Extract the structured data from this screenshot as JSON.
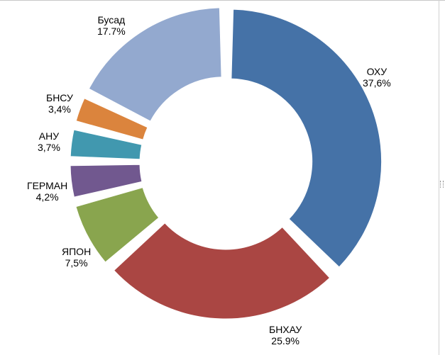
{
  "chart_data": {
    "type": "pie",
    "style": "doughnut-exploded",
    "grid": false,
    "legend": "none",
    "title": "",
    "slices": [
      {
        "category": "ОХУ",
        "label": "37,6%",
        "value": 37.6,
        "color": "#4572a7"
      },
      {
        "category": "БНХАУ",
        "label": "25.9%",
        "value": 25.9,
        "color": "#aa4643"
      },
      {
        "category": "ЯПОН",
        "label": "7,5%",
        "value": 7.5,
        "color": "#89a54e"
      },
      {
        "category": "ГЕРМАН",
        "label": "4,2%",
        "value": 4.2,
        "color": "#71588f"
      },
      {
        "category": "АНУ",
        "label": "3,7%",
        "value": 3.7,
        "color": "#4198af"
      },
      {
        "category": "БНСУ",
        "label": "3,4%",
        "value": 3.4,
        "color": "#db843d"
      },
      {
        "category": "Бусад",
        "label": "17.7%",
        "value": 17.7,
        "color": "#93a9cf"
      }
    ]
  }
}
